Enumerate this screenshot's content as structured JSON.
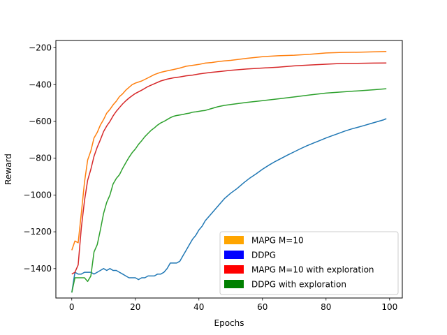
{
  "chart_data": {
    "type": "line",
    "title": "",
    "xlabel": "Epochs",
    "ylabel": "Reward",
    "xlim": [
      -5,
      104
    ],
    "ylim": [
      -1560,
      -160
    ],
    "xticks": [
      0,
      20,
      40,
      60,
      80,
      100
    ],
    "yticks": [
      -1400,
      -1200,
      -1000,
      -800,
      -600,
      -400,
      -200
    ],
    "grid": false,
    "legend_position": "lower-right",
    "legend": [
      {
        "label": "MAPG M=10",
        "color": "#ffa500"
      },
      {
        "label": "DDPG",
        "color": "#0000ff"
      },
      {
        "label": "MAPG M=10 with exploration",
        "color": "#ff0000"
      },
      {
        "label": "DDPG with exploration",
        "color": "#008000"
      }
    ],
    "series": [
      {
        "color": "#ff7f0e",
        "x": [
          0,
          1,
          2,
          3,
          4,
          5,
          6,
          7,
          8,
          9,
          10,
          11,
          12,
          13,
          14,
          15,
          16,
          17,
          18,
          19,
          20,
          22,
          24,
          26,
          28,
          30,
          32,
          34,
          36,
          38,
          40,
          42,
          44,
          46,
          48,
          50,
          55,
          60,
          65,
          70,
          75,
          80,
          85,
          90,
          95,
          99
        ],
        "y": [
          -1300,
          -1250,
          -1260,
          -1100,
          -930,
          -810,
          -760,
          -690,
          -660,
          -620,
          -590,
          -555,
          -535,
          -510,
          -490,
          -465,
          -450,
          -430,
          -415,
          -400,
          -392,
          -380,
          -363,
          -345,
          -333,
          -325,
          -318,
          -310,
          -300,
          -295,
          -290,
          -283,
          -280,
          -275,
          -271,
          -268,
          -257,
          -248,
          -243,
          -240,
          -235,
          -228,
          -225,
          -224,
          -222,
          -220
        ]
      },
      {
        "color": "#1f77b4",
        "x": [
          0,
          1,
          2,
          3,
          4,
          5,
          6,
          7,
          8,
          9,
          10,
          11,
          12,
          13,
          14,
          15,
          16,
          17,
          18,
          19,
          20,
          21,
          22,
          23,
          24,
          25,
          26,
          27,
          28,
          29,
          30,
          31,
          32,
          33,
          34,
          35,
          36,
          37,
          38,
          39,
          40,
          41,
          42,
          44,
          46,
          48,
          50,
          52,
          54,
          56,
          58,
          60,
          62,
          64,
          66,
          68,
          70,
          72,
          74,
          76,
          78,
          80,
          82,
          84,
          86,
          88,
          90,
          92,
          94,
          96,
          98,
          99
        ],
        "y": [
          -1530,
          -1420,
          -1430,
          -1430,
          -1420,
          -1420,
          -1420,
          -1430,
          -1420,
          -1410,
          -1400,
          -1410,
          -1400,
          -1410,
          -1410,
          -1420,
          -1430,
          -1440,
          -1450,
          -1450,
          -1450,
          -1460,
          -1450,
          -1450,
          -1440,
          -1440,
          -1440,
          -1430,
          -1430,
          -1420,
          -1400,
          -1370,
          -1370,
          -1370,
          -1360,
          -1330,
          -1300,
          -1270,
          -1240,
          -1220,
          -1190,
          -1170,
          -1140,
          -1100,
          -1060,
          -1020,
          -990,
          -965,
          -935,
          -908,
          -885,
          -860,
          -838,
          -818,
          -800,
          -782,
          -765,
          -748,
          -732,
          -718,
          -704,
          -690,
          -677,
          -665,
          -652,
          -641,
          -632,
          -622,
          -612,
          -602,
          -592,
          -585
        ]
      },
      {
        "color": "#d62728",
        "x": [
          0,
          1,
          2,
          3,
          4,
          5,
          6,
          7,
          8,
          9,
          10,
          11,
          12,
          13,
          14,
          15,
          16,
          17,
          18,
          19,
          20,
          22,
          24,
          26,
          28,
          30,
          32,
          34,
          36,
          38,
          40,
          42,
          44,
          46,
          48,
          50,
          55,
          60,
          65,
          70,
          75,
          80,
          85,
          90,
          95,
          99
        ],
        "y": [
          -1430,
          -1420,
          -1380,
          -1180,
          -1030,
          -920,
          -860,
          -790,
          -740,
          -700,
          -655,
          -625,
          -600,
          -570,
          -545,
          -525,
          -505,
          -488,
          -473,
          -460,
          -448,
          -430,
          -410,
          -395,
          -380,
          -370,
          -363,
          -358,
          -352,
          -348,
          -342,
          -337,
          -333,
          -330,
          -326,
          -322,
          -315,
          -310,
          -305,
          -298,
          -293,
          -289,
          -285,
          -284,
          -283,
          -282
        ]
      },
      {
        "color": "#2ca02c",
        "x": [
          0,
          1,
          2,
          3,
          4,
          5,
          6,
          7,
          8,
          9,
          10,
          11,
          12,
          13,
          14,
          15,
          16,
          17,
          18,
          19,
          20,
          21,
          22,
          23,
          24,
          25,
          26,
          27,
          28,
          29,
          30,
          31,
          32,
          33,
          34,
          35,
          36,
          37,
          38,
          39,
          40,
          41,
          42,
          44,
          46,
          48,
          50,
          55,
          60,
          65,
          70,
          75,
          80,
          85,
          90,
          95,
          99
        ],
        "y": [
          -1530,
          -1450,
          -1450,
          -1450,
          -1450,
          -1470,
          -1440,
          -1310,
          -1270,
          -1190,
          -1100,
          -1040,
          -1000,
          -940,
          -910,
          -890,
          -855,
          -825,
          -795,
          -770,
          -750,
          -725,
          -705,
          -683,
          -665,
          -648,
          -635,
          -620,
          -608,
          -600,
          -590,
          -580,
          -572,
          -568,
          -565,
          -562,
          -558,
          -555,
          -550,
          -548,
          -545,
          -542,
          -540,
          -530,
          -520,
          -513,
          -508,
          -497,
          -487,
          -477,
          -467,
          -456,
          -446,
          -440,
          -434,
          -428,
          -422
        ]
      }
    ]
  }
}
